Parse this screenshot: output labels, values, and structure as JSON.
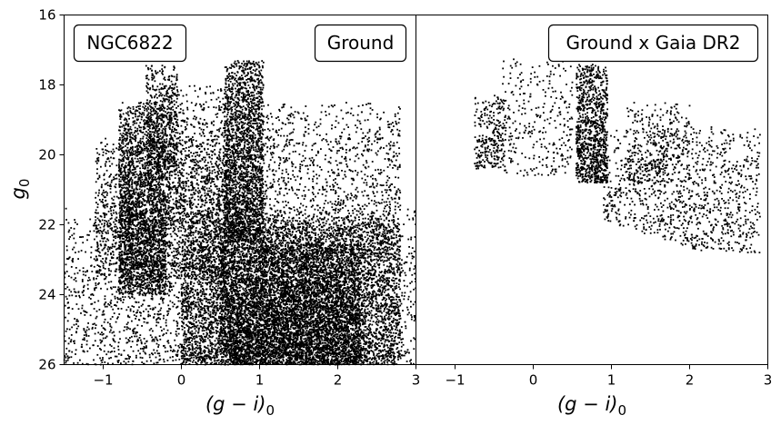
{
  "figure": {
    "ylabel_base": "g",
    "ylabel_sub": "0"
  },
  "chart_data": [
    {
      "type": "scatter",
      "panel": "left",
      "annotations": [
        "NGC6822",
        "Ground"
      ],
      "xlabel_base": "(g − i)",
      "xlabel_sub": "0",
      "xlim": [
        -1.5,
        3
      ],
      "ylim": [
        26,
        16
      ],
      "y_inverted": true,
      "xticks": [
        -1,
        0,
        1,
        2,
        3
      ],
      "xtick_labels": [
        "−1",
        "0",
        "1",
        "2",
        "3"
      ],
      "yticks": [
        16,
        18,
        20,
        22,
        24,
        26
      ],
      "ytick_labels": [
        "16",
        "18",
        "20",
        "22",
        "24",
        "26"
      ],
      "grid": false,
      "marker_color": "#000000",
      "regions": [
        {
          "x": [
            0.55,
            1.05
          ],
          "y": [
            17.3,
            22.5
          ],
          "n": 2200
        },
        {
          "x": [
            -0.8,
            -0.2
          ],
          "y": [
            18.5,
            24.0
          ],
          "n": 2400
        },
        {
          "x": [
            -0.45,
            -0.05
          ],
          "y": [
            17.4,
            20.5
          ],
          "n": 450
        },
        {
          "x": [
            0.0,
            2.8
          ],
          "y": [
            21.8,
            26.0
          ],
          "n": 5500
        },
        {
          "x": [
            0.5,
            2.3
          ],
          "y": [
            22.5,
            26.0
          ],
          "n": 4500
        },
        {
          "x": [
            -1.5,
            3.0
          ],
          "y": [
            21.5,
            26.0
          ],
          "n": 2800
        },
        {
          "x": [
            1.0,
            2.8
          ],
          "y": [
            18.5,
            23.0
          ],
          "n": 1300
        },
        {
          "x": [
            -1.1,
            0.6
          ],
          "y": [
            19.5,
            23.5
          ],
          "n": 1600
        },
        {
          "x": [
            -0.2,
            0.6
          ],
          "y": [
            18.0,
            22.0
          ],
          "n": 700
        }
      ]
    },
    {
      "type": "scatter",
      "panel": "right",
      "annotations": [
        "Ground x Gaia DR2"
      ],
      "xlabel_base": "(g − i)",
      "xlabel_sub": "0",
      "xlim": [
        -1.5,
        3
      ],
      "ylim": [
        26,
        16
      ],
      "y_inverted": true,
      "xticks": [
        -1,
        0,
        1,
        2,
        3
      ],
      "xtick_labels": [
        "−1",
        "0",
        "1",
        "2",
        "3"
      ],
      "grid": false,
      "marker_color": "#000000",
      "regions": [
        {
          "x": [
            0.55,
            0.95
          ],
          "y": [
            17.4,
            20.8
          ],
          "n": 1000
        },
        {
          "x": [
            -0.75,
            -0.35
          ],
          "y": [
            18.3,
            20.4
          ],
          "n": 280
        },
        {
          "x": [
            -0.4,
            0.5
          ],
          "y": [
            17.2,
            20.6
          ],
          "n": 300
        },
        {
          "x": [
            0.9,
            2.9
          ],
          "y": [
            19.2,
            22.8
          ],
          "n": 1200
        },
        {
          "x": [
            1.2,
            2.0
          ],
          "y": [
            18.5,
            20.8
          ],
          "n": 300
        }
      ]
    }
  ]
}
